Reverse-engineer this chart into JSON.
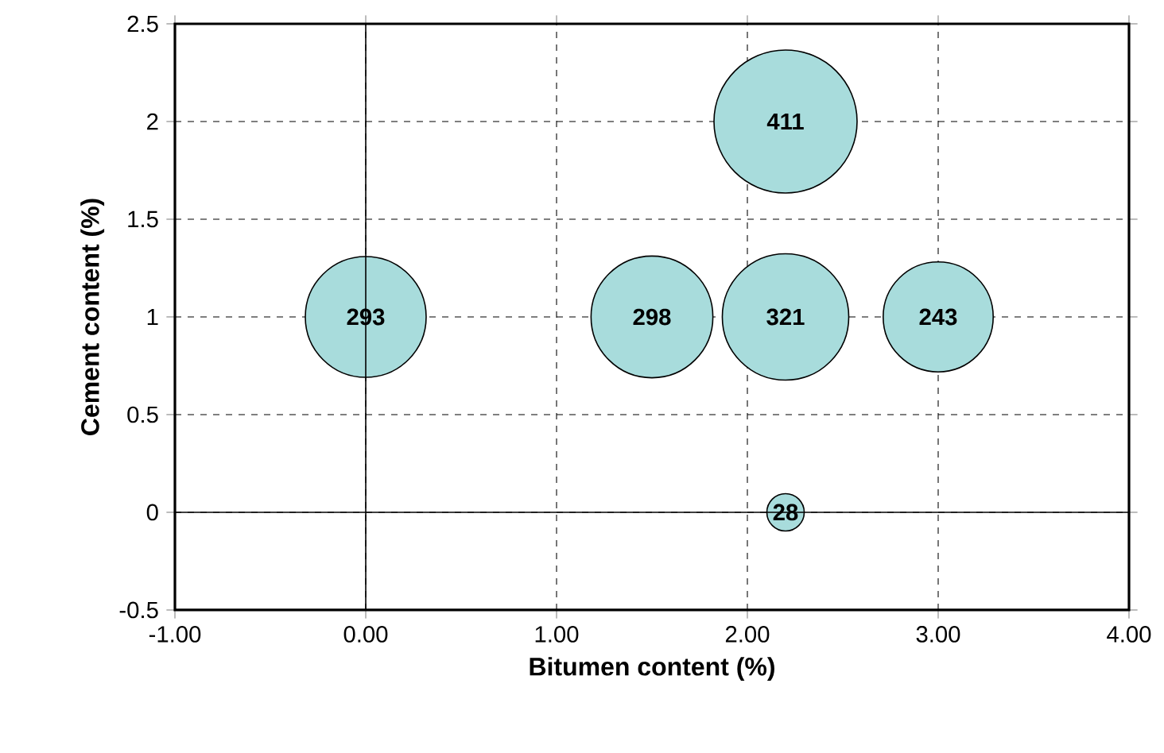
{
  "chart_data": {
    "type": "bubble",
    "xlabel": "Bitumen content (%)",
    "ylabel": "Cement content (%)",
    "x": [
      0,
      1.5,
      2.2,
      3,
      2.2,
      2.2
    ],
    "values": [
      1,
      1,
      1,
      1,
      2,
      0
    ],
    "sizes": [
      293,
      298,
      321,
      243,
      411,
      28
    ],
    "value_labels": [
      "293",
      "298",
      "321",
      "243",
      "411",
      "28"
    ],
    "color": "#a8dcdc",
    "xlim": [
      -1,
      4
    ],
    "ylim": [
      -0.5,
      2.5
    ],
    "xticks": [
      {
        "value": -1,
        "label": "-1.00"
      },
      {
        "value": 0,
        "label": "0.00"
      },
      {
        "value": 1,
        "label": "1.00"
      },
      {
        "value": 2,
        "label": "2.00"
      },
      {
        "value": 3,
        "label": "3.00"
      },
      {
        "value": 4,
        "label": "4.00"
      }
    ],
    "yticks": [
      -0.5,
      0,
      0.5,
      1,
      1.5,
      2,
      2.5
    ],
    "grid": true
  }
}
